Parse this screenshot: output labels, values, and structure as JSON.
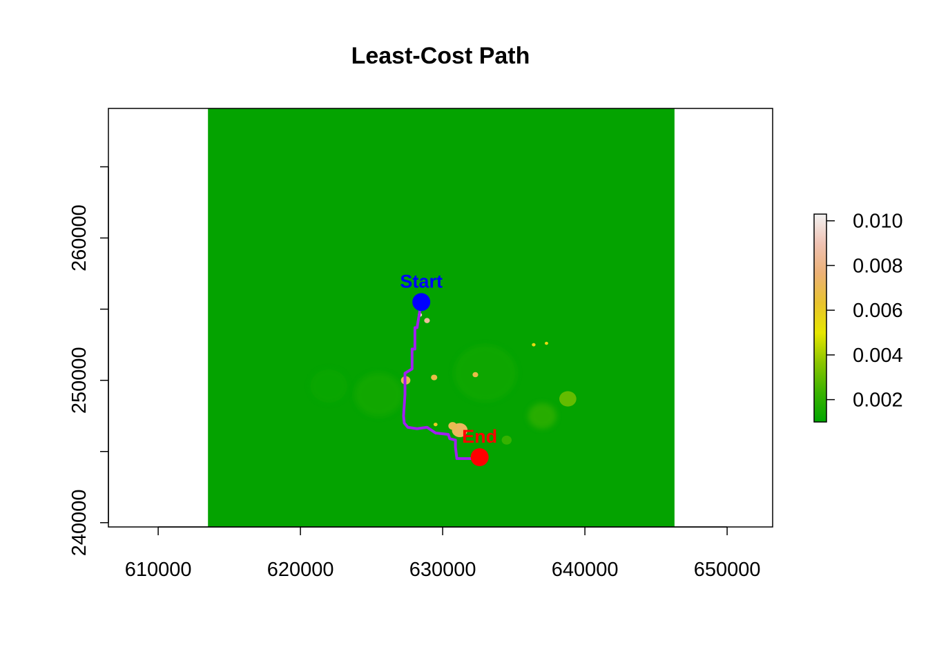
{
  "title": "Least-Cost Path",
  "map": {
    "xlim": [
      606500,
      653200
    ],
    "ylim": [
      239700,
      269100
    ],
    "raster_extent": {
      "xmin": 613500,
      "xmax": 646300,
      "ymin": 239700,
      "ymax": 269100
    },
    "background_color": "#04A300",
    "x_ticks": [
      610000,
      620000,
      630000,
      640000,
      650000
    ],
    "x_tick_labels": [
      "610000",
      "620000",
      "630000",
      "640000",
      "650000"
    ],
    "y_ticks": [
      240000,
      245000,
      250000,
      255000,
      260000,
      265000
    ],
    "y_tick_labels": [
      "240000",
      "",
      "250000",
      "",
      "260000",
      ""
    ]
  },
  "legend": {
    "range": [
      0.001,
      0.0103
    ],
    "ticks": [
      0.002,
      0.004,
      0.006,
      0.008,
      0.01
    ],
    "tick_labels": [
      "0.002",
      "0.004",
      "0.006",
      "0.008",
      "0.010"
    ],
    "colors": [
      "#00A600",
      "#3BB300",
      "#8BC500",
      "#E6E600",
      "#E8C32E",
      "#ECB176",
      "#EFC2B3",
      "#F2F2F2"
    ]
  },
  "start": {
    "label": "Start",
    "x": 628500,
    "y": 255500,
    "color": "#0000FF"
  },
  "end": {
    "label": "End",
    "x": 632600,
    "y": 244600,
    "color": "#FF0000"
  },
  "path": {
    "color": "#A020F0",
    "points": [
      [
        628500,
        255500
      ],
      [
        628200,
        253700
      ],
      [
        628050,
        253700
      ],
      [
        628050,
        252200
      ],
      [
        627850,
        252200
      ],
      [
        627850,
        250800
      ],
      [
        627350,
        250500
      ],
      [
        627350,
        249000
      ],
      [
        627250,
        247500
      ],
      [
        627300,
        247000
      ],
      [
        627550,
        246700
      ],
      [
        628200,
        246600
      ],
      [
        628900,
        246700
      ],
      [
        629500,
        246300
      ],
      [
        630400,
        246200
      ],
      [
        630500,
        245900
      ],
      [
        630900,
        245800
      ],
      [
        630900,
        245300
      ],
      [
        631000,
        244500
      ],
      [
        632600,
        244500
      ]
    ]
  },
  "cost_patches": [
    {
      "x": 637000,
      "y": 247500,
      "r": 1000,
      "level": 0.0025
    },
    {
      "x": 638800,
      "y": 248700,
      "r": 600,
      "level": 0.003
    },
    {
      "x": 631200,
      "y": 246500,
      "r": 550,
      "level": 0.0072
    },
    {
      "x": 630700,
      "y": 246800,
      "r": 300,
      "level": 0.007
    },
    {
      "x": 627400,
      "y": 250000,
      "r": 330,
      "level": 0.007
    },
    {
      "x": 629400,
      "y": 250200,
      "r": 220,
      "level": 0.0068
    },
    {
      "x": 632300,
      "y": 250400,
      "r": 200,
      "level": 0.0068
    },
    {
      "x": 628900,
      "y": 254200,
      "r": 200,
      "level": 0.0085
    },
    {
      "x": 628400,
      "y": 254600,
      "r": 150,
      "level": 0.0095
    },
    {
      "x": 636400,
      "y": 252500,
      "r": 130,
      "level": 0.0055
    },
    {
      "x": 637300,
      "y": 252600,
      "r": 120,
      "level": 0.0055
    },
    {
      "x": 629500,
      "y": 246900,
      "r": 140,
      "level": 0.006
    },
    {
      "x": 634500,
      "y": 245800,
      "r": 350,
      "level": 0.0022
    },
    {
      "x": 625500,
      "y": 249000,
      "r": 1700,
      "level": 0.0016
    },
    {
      "x": 633000,
      "y": 250500,
      "r": 2200,
      "level": 0.0014
    },
    {
      "x": 622000,
      "y": 249600,
      "r": 1300,
      "level": 0.0013
    }
  ]
}
